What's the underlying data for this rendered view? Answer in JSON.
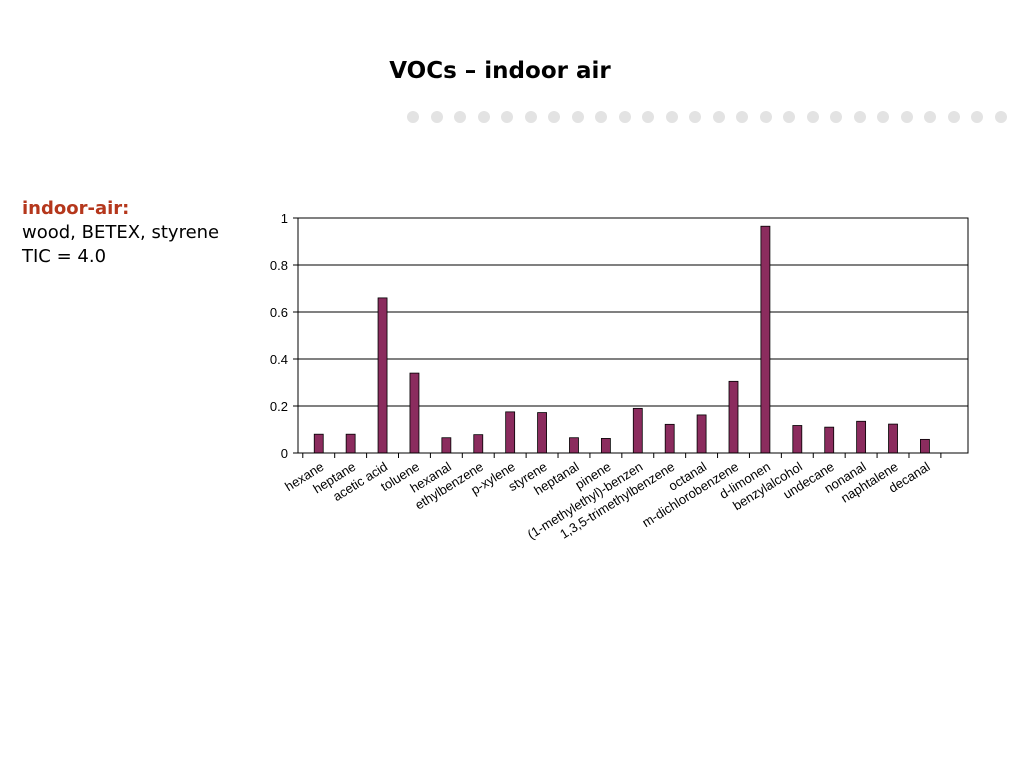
{
  "slide": {
    "title": "VOCs – indoor air",
    "side_heading": "indoor-air:",
    "side_line1": "wood, BETEX, styrene",
    "side_line2": "TIC = 4.0"
  },
  "colors": {
    "bar": "#8b2c5e",
    "accent": "#b5371c",
    "dots": "#e3e3e3"
  },
  "chart_data": {
    "type": "bar",
    "title": "",
    "xlabel": "",
    "ylabel": "",
    "ylim": [
      0,
      1
    ],
    "yticks": [
      "0",
      "0.2",
      "0.4",
      "0.6",
      "0.8",
      "1"
    ],
    "grid": true,
    "categories": [
      "hexane",
      "heptane",
      "acetic acid",
      "toluene",
      "hexanal",
      "ethylbenzene",
      "p-xylene",
      "styrene",
      "heptanal",
      "pinene",
      "(1-methylethyl)-benzen",
      "1,3,5-trimethylbenzene",
      "octanal",
      "m-dichlorobenzene",
      "d-limonen",
      "benzylalcohol",
      "undecane",
      "nonanal",
      "naphtalene",
      "decanal"
    ],
    "values": [
      0.08,
      0.08,
      0.66,
      0.34,
      0.065,
      0.078,
      0.175,
      0.172,
      0.065,
      0.062,
      0.19,
      0.122,
      0.162,
      0.305,
      0.965,
      0.117,
      0.11,
      0.135,
      0.123,
      0.058
    ]
  }
}
